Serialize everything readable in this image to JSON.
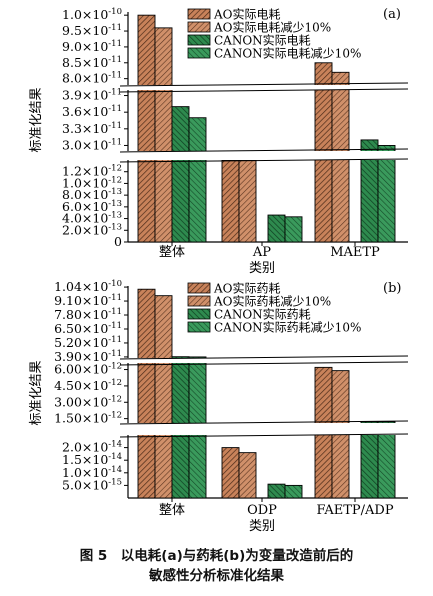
{
  "chart_data": [
    {
      "type": "bar",
      "panel_label": "(a)",
      "xlabel": "类别",
      "ylabel": "标准化结果",
      "categories": [
        "整体",
        "AP",
        "MAETP"
      ],
      "series": [
        {
          "name": "AO实际电耗",
          "values": [
            1e-10,
            1.95e-12,
            8.5e-11
          ]
        },
        {
          "name": "AO实际电耗减少10%",
          "values": [
            9.6e-11,
            1.85e-12,
            8.2e-11
          ]
        },
        {
          "name": "CANON实际电耗",
          "values": [
            3.7e-11,
            4.6e-13,
            3.1e-11
          ]
        },
        {
          "name": "CANON实际电耗减少10%",
          "values": [
            3.5e-11,
            4.3e-13,
            3e-11
          ]
        }
      ],
      "y_segments": [
        {
          "range": [
            0,
            1.4e-12
          ],
          "ticks": [
            "0",
            "2.0×10^-13",
            "4.0×10^-13",
            "6.0×10^-13",
            "8.0×10^-13",
            "1.0×10^-12",
            "1.2×10^-12"
          ]
        },
        {
          "range": [
            2.9e-11,
            4e-11
          ],
          "ticks": [
            "3.0×10^-11",
            "3.3×10^-11",
            "3.6×10^-11",
            "3.9×10^-11"
          ]
        },
        {
          "range": [
            7.8e-11,
            1.01e-10
          ],
          "ticks": [
            "8.0×10^-11",
            "8.5×10^-11",
            "9.0×10^-11",
            "9.5×10^-11",
            "1.0×10^-10"
          ]
        }
      ],
      "legend_position": "top-center"
    },
    {
      "type": "bar",
      "panel_label": "(b)",
      "xlabel": "类别",
      "ylabel": "标准化结果",
      "categories": [
        "整体",
        "ODP",
        "FAETP/ADP"
      ],
      "series": [
        {
          "name": "AO实际药耗",
          "values": [
            1.02e-10,
            2e-14,
            6.2e-12
          ]
        },
        {
          "name": "AO实际药耗减少10%",
          "values": [
            9.6e-11,
            1.8e-14,
            5.9e-12
          ]
        },
        {
          "name": "CANON实际药耗",
          "values": [
            3.92e-11,
            5.5e-15,
            1.2e-12
          ]
        },
        {
          "name": "CANON实际药耗减少10%",
          "values": [
            3.9e-11,
            5e-15,
            1.2e-12
          ]
        }
      ],
      "y_segments": [
        {
          "range": [
            0,
            2.5e-14
          ],
          "ticks": [
            "5.0×10^-15",
            "1.0×10^-14",
            "1.5×10^-14",
            "2.0×10^-14"
          ]
        },
        {
          "range": [
            1.1e-12,
            6.6e-12
          ],
          "ticks": [
            "1.50×10^-12",
            "3.00×10^-12",
            "4.50×10^-12",
            "6.00×10^-12"
          ]
        },
        {
          "range": [
            3.8e-11,
            1.05e-10
          ],
          "ticks": [
            "3.90×10^-11",
            "5.20×10^-11",
            "6.50×10^-11",
            "7.80×10^-11",
            "9.10×10^-11",
            "1.04×10^-10"
          ]
        }
      ],
      "legend_position": "top-center"
    }
  ],
  "caption": {
    "line1": "图 5　以电耗(a)与药耗(b)为变量改造前后的",
    "line2": "敏感性分析标准化结果"
  },
  "colors": {
    "ao_fill": "#c8825a",
    "canon_fill": "#2e8a4e",
    "axis": "#000000"
  }
}
